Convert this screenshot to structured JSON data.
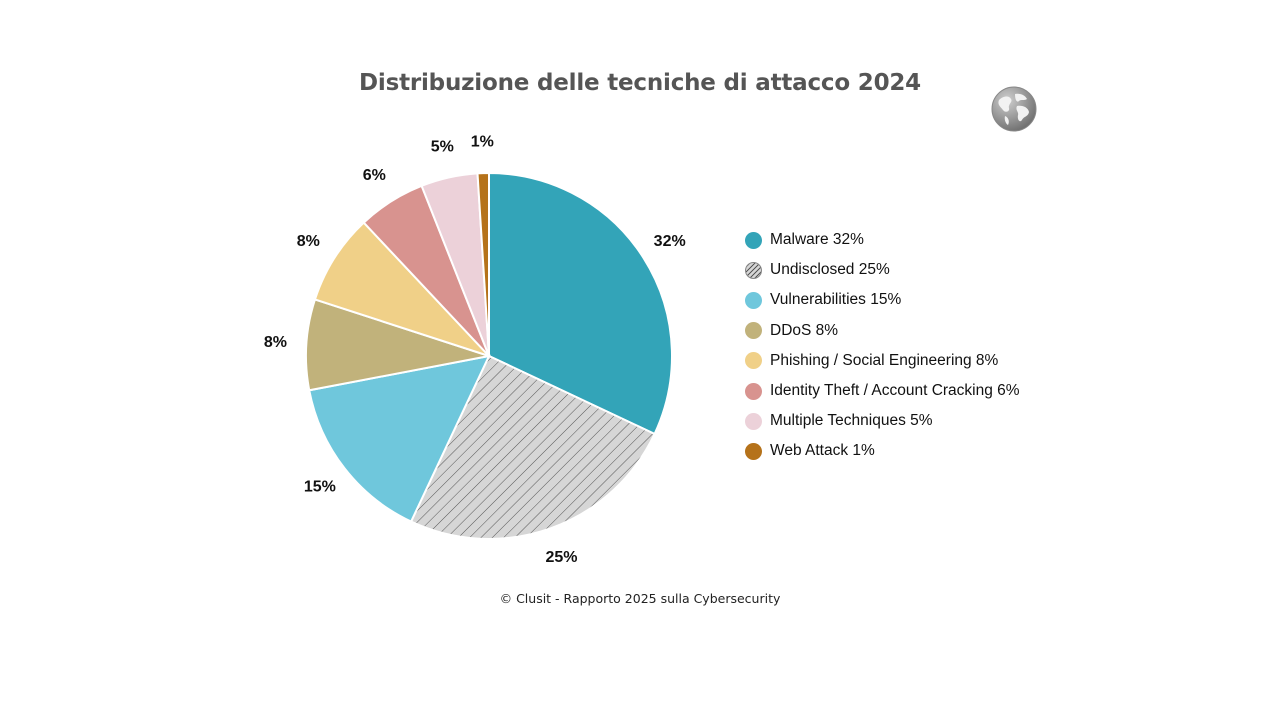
{
  "chart_data": {
    "type": "pie",
    "title": "Distribuzione delle tecniche di attacco 2024",
    "slices": [
      {
        "name": "Malware",
        "value": 32,
        "label": "32%",
        "legend": "Malware 32%",
        "color": "#33a4b8",
        "pattern": false
      },
      {
        "name": "Undisclosed",
        "value": 25,
        "label": "25%",
        "legend": "Undisclosed 25%",
        "color": "#d6d6d6",
        "pattern": true
      },
      {
        "name": "Vulnerabilities",
        "value": 15,
        "label": "15%",
        "legend": "Vulnerabilities 15%",
        "color": "#6fc7dc",
        "pattern": false
      },
      {
        "name": "DDoS",
        "value": 8,
        "label": "8%",
        "legend": "DDoS 8%",
        "color": "#c1b27b",
        "pattern": false
      },
      {
        "name": "Phishing / Social Engineering",
        "value": 8,
        "label": "8%",
        "legend": "Phishing / Social Engineering 8%",
        "color": "#f0d088",
        "pattern": false
      },
      {
        "name": "Identity Theft / Account Cracking",
        "value": 6,
        "label": "6%",
        "legend": "Identity Theft / Account Cracking 6%",
        "color": "#d8938f",
        "pattern": false
      },
      {
        "name": "Multiple Techniques",
        "value": 5,
        "label": "5%",
        "legend": "Multiple Techniques 5%",
        "color": "#ecd1d9",
        "pattern": false
      },
      {
        "name": "Web Attack",
        "value": 1,
        "label": "1%",
        "legend": "Web Attack 1%",
        "color": "#b5721a",
        "pattern": false
      }
    ],
    "legend_position": "right"
  },
  "footer": "© Clusit - Rapporto 2025 sulla Cybersecurity",
  "globe_icon": "globe-icon"
}
